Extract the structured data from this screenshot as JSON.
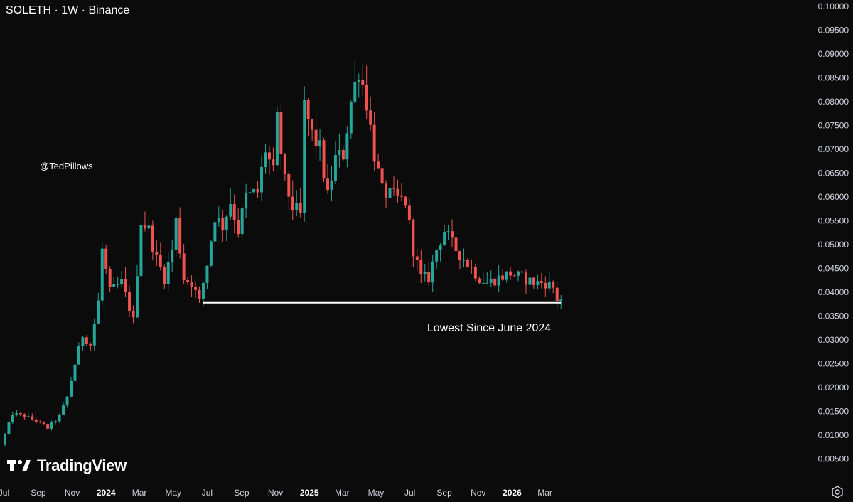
{
  "header": {
    "title": "SOLETH · 1W · Binance"
  },
  "watermark": "@TedPillows",
  "brand": {
    "name": "TradingView",
    "logo_icon": "tradingview-logo-icon"
  },
  "settings_icon": "gear-icon",
  "colors": {
    "background": "#0b0b0b",
    "up": "#26a69a",
    "down": "#ef5350",
    "support_line": "#ffffff",
    "text": "#d1d4dc"
  },
  "chart_data": {
    "type": "candlestick",
    "title": "SOLETH · 1W · Binance",
    "x_ticks": [
      "Jul",
      "Sep",
      "Nov",
      "2024",
      "Mar",
      "May",
      "Jul",
      "Sep",
      "Nov",
      "2025",
      "Mar",
      "May",
      "Jul",
      "Sep",
      "Nov",
      "2026",
      "Mar"
    ],
    "y_ticks": [
      "0.10000",
      "0.09500",
      "0.09000",
      "0.08500",
      "0.08000",
      "0.07500",
      "0.07000",
      "0.06500",
      "0.06000",
      "0.05500",
      "0.05000",
      "0.04500",
      "0.04000",
      "0.03500",
      "0.03000",
      "0.02500",
      "0.02000",
      "0.01500",
      "0.01000",
      "0.00500"
    ],
    "ylim": [
      0,
      0.1
    ],
    "grid": false,
    "annotations": [
      {
        "type": "horizontal_line",
        "price": 0.0378,
        "from_date": "2024-06-24",
        "to_date": "2026-03-30",
        "label": "Lowest Since June 2024"
      }
    ],
    "waypoints": [
      [
        "2023-07-03",
        0.008
      ],
      [
        "2023-07-24",
        0.0145
      ],
      [
        "2023-08-14",
        0.014
      ],
      [
        "2023-09-04",
        0.013
      ],
      [
        "2023-09-25",
        0.0115
      ],
      [
        "2023-10-16",
        0.014
      ],
      [
        "2023-10-30",
        0.018
      ],
      [
        "2023-11-13",
        0.025
      ],
      [
        "2023-11-27",
        0.031
      ],
      [
        "2023-12-11",
        0.029
      ],
      [
        "2023-12-25",
        0.038
      ],
      [
        "2024-01-01",
        0.049
      ],
      [
        "2024-01-15",
        0.04
      ],
      [
        "2024-02-05",
        0.042
      ],
      [
        "2024-02-26",
        0.034
      ],
      [
        "2024-03-11",
        0.055
      ],
      [
        "2024-03-25",
        0.053
      ],
      [
        "2024-04-08",
        0.047
      ],
      [
        "2024-04-22",
        0.043
      ],
      [
        "2024-05-06",
        0.049
      ],
      [
        "2024-05-13",
        0.055
      ],
      [
        "2024-05-27",
        0.043
      ],
      [
        "2024-06-10",
        0.042
      ],
      [
        "2024-06-24",
        0.038
      ],
      [
        "2024-07-08",
        0.046
      ],
      [
        "2024-07-22",
        0.056
      ],
      [
        "2024-08-05",
        0.054
      ],
      [
        "2024-08-19",
        0.059
      ],
      [
        "2024-09-02",
        0.053
      ],
      [
        "2024-09-16",
        0.06
      ],
      [
        "2024-10-07",
        0.061
      ],
      [
        "2024-10-21",
        0.07
      ],
      [
        "2024-11-04",
        0.065
      ],
      [
        "2024-11-11",
        0.076
      ],
      [
        "2024-11-25",
        0.063
      ],
      [
        "2024-12-09",
        0.058
      ],
      [
        "2024-12-23",
        0.056
      ],
      [
        "2024-12-30",
        0.079
      ],
      [
        "2025-01-13",
        0.073
      ],
      [
        "2025-01-27",
        0.07
      ],
      [
        "2025-02-10",
        0.06
      ],
      [
        "2025-02-24",
        0.068
      ],
      [
        "2025-03-10",
        0.069
      ],
      [
        "2025-03-24",
        0.08
      ],
      [
        "2025-04-07",
        0.087
      ],
      [
        "2025-04-21",
        0.08
      ],
      [
        "2025-05-05",
        0.069
      ],
      [
        "2025-05-19",
        0.061
      ],
      [
        "2025-06-09",
        0.06
      ],
      [
        "2025-06-30",
        0.059
      ],
      [
        "2025-07-14",
        0.049
      ],
      [
        "2025-07-28",
        0.043
      ],
      [
        "2025-08-11",
        0.043
      ],
      [
        "2025-08-25",
        0.049
      ],
      [
        "2025-09-08",
        0.053
      ],
      [
        "2025-09-22",
        0.05
      ],
      [
        "2025-10-13",
        0.047
      ],
      [
        "2025-10-27",
        0.045
      ],
      [
        "2025-11-10",
        0.043
      ],
      [
        "2025-11-24",
        0.042
      ],
      [
        "2025-12-15",
        0.043
      ],
      [
        "2026-01-05",
        0.044
      ],
      [
        "2026-01-26",
        0.043
      ],
      [
        "2026-02-16",
        0.042
      ],
      [
        "2026-03-09",
        0.042
      ],
      [
        "2026-03-23",
        0.041
      ],
      [
        "2026-03-30",
        0.0385
      ]
    ]
  }
}
